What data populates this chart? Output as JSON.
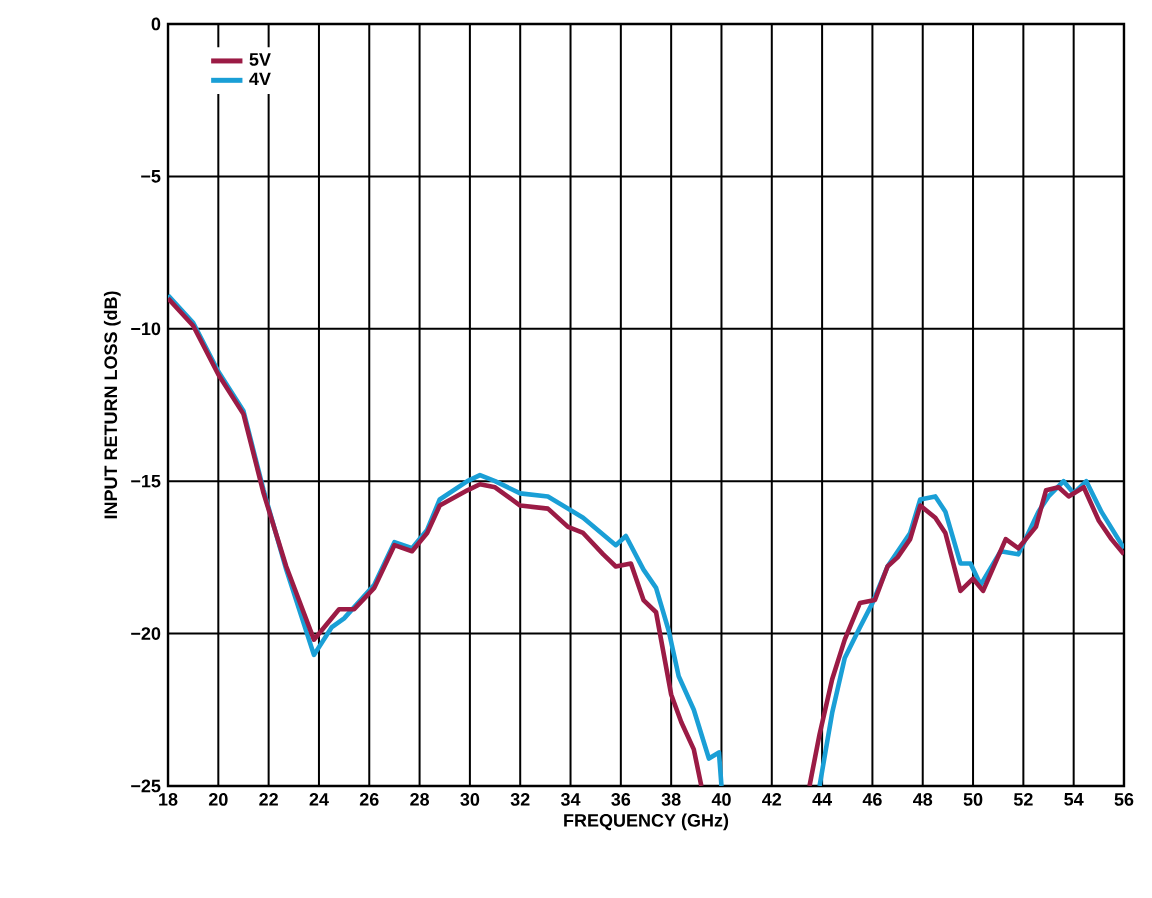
{
  "chart_data": {
    "type": "line",
    "xlabel": "FREQUENCY (GHz)",
    "ylabel": "INPUT RETURN LOSS (dB)",
    "xlim": [
      18,
      56
    ],
    "xticks": [
      18,
      20,
      22,
      24,
      26,
      28,
      30,
      32,
      34,
      36,
      38,
      40,
      42,
      44,
      46,
      48,
      50,
      52,
      54,
      56
    ],
    "ylim": [
      -25,
      0
    ],
    "yticks": [
      0,
      {
        "value": -5,
        "label": "−5"
      },
      {
        "value": -10,
        "label": "−10"
      },
      {
        "value": -15,
        "label": "−15"
      },
      {
        "value": -20,
        "label": "−20"
      },
      {
        "value": -25,
        "label": "−25"
      }
    ],
    "grid": true,
    "legend": "top left",
    "marker": "none",
    "line_style": "solid",
    "series": [
      {
        "name": "5V",
        "color": "#9b1b45",
        "x": [
          18,
          19,
          20,
          21,
          21.8,
          22.7,
          23.8,
          24.8,
          25.4,
          26.2,
          27,
          27.7,
          28.3,
          28.8,
          29.9,
          30.4,
          31,
          32,
          33.1,
          33.9,
          34.5,
          35.3,
          35.8,
          36.4,
          36.9,
          37.4,
          38,
          38.4,
          38.9,
          39.2,
          41,
          43.5,
          43.9,
          44.4,
          44.9,
          45.5,
          46.1,
          46.6,
          47,
          47.5,
          47.9,
          48.5,
          48.9,
          49.5,
          50,
          50.4,
          51.3,
          51.8,
          52.5,
          52.9,
          53.4,
          53.8,
          54.4,
          55,
          55.5,
          56
        ],
        "values": [
          -9,
          -9.9,
          -11.5,
          -12.8,
          -15.4,
          -17.8,
          -20.2,
          -19.2,
          -19.2,
          -18.5,
          -17.1,
          -17.3,
          -16.7,
          -15.8,
          -15.3,
          -15.1,
          -15.2,
          -15.8,
          -15.9,
          -16.5,
          -16.7,
          -17.4,
          -17.8,
          -17.7,
          -18.9,
          -19.3,
          -22,
          -22.9,
          -23.8,
          -25,
          null,
          -25,
          -23.3,
          -21.5,
          -20.2,
          -19,
          -18.9,
          -17.8,
          -17.5,
          -16.9,
          -15.8,
          -16.2,
          -16.7,
          -18.6,
          -18.2,
          -18.6,
          -16.9,
          -17.2,
          -16.5,
          -15.3,
          -15.2,
          -15.5,
          -15.2,
          -16.3,
          -16.9,
          -17.4
        ]
      },
      {
        "name": "4V",
        "color": "#1a9fd6",
        "x": [
          18,
          19,
          20,
          21,
          21.8,
          22.7,
          23.8,
          24.5,
          25,
          26.2,
          27,
          27.7,
          28.3,
          28.8,
          29.9,
          30.4,
          31,
          32,
          33.1,
          34.5,
          35.8,
          36.2,
          36.9,
          37.4,
          37.9,
          38.3,
          38.9,
          39.5,
          39.9,
          40,
          42,
          43.9,
          44.4,
          44.9,
          45.5,
          46,
          46.6,
          47.5,
          47.9,
          48.5,
          48.9,
          49.5,
          49.9,
          50.3,
          51.1,
          51.8,
          52.6,
          53,
          53.6,
          54,
          54.5,
          55.1,
          56
        ],
        "values": [
          -8.9,
          -9.8,
          -11.4,
          -12.7,
          -15.3,
          -17.9,
          -20.7,
          -19.8,
          -19.5,
          -18.4,
          -17,
          -17.2,
          -16.6,
          -15.6,
          -15,
          -14.8,
          -15,
          -15.4,
          -15.5,
          -16.2,
          -17.1,
          -16.8,
          -17.9,
          -18.5,
          -19.9,
          -21.4,
          -22.5,
          -24.1,
          -23.9,
          -25,
          null,
          -25,
          -22.6,
          -20.8,
          -19.8,
          -19,
          -17.8,
          -16.7,
          -15.6,
          -15.5,
          -16,
          -17.7,
          -17.7,
          -18.4,
          -17.3,
          -17.4,
          -16,
          -15.5,
          -15,
          -15.4,
          -15,
          -16,
          -17.2
        ]
      }
    ]
  }
}
